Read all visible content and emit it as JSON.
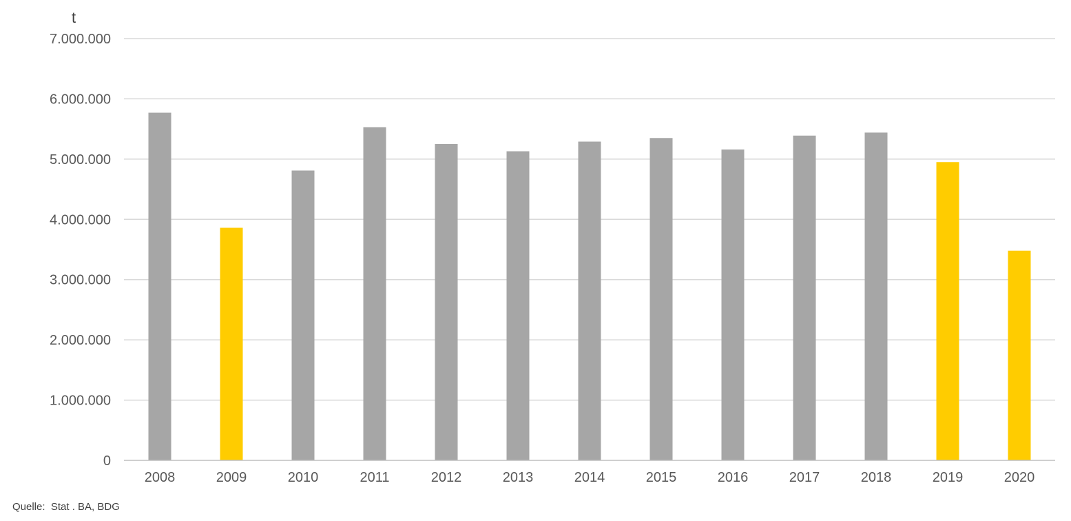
{
  "chart_data": {
    "type": "bar",
    "ylabel": "t",
    "categories": [
      "2008",
      "2009",
      "2010",
      "2011",
      "2012",
      "2013",
      "2014",
      "2015",
      "2016",
      "2017",
      "2018",
      "2019",
      "2020"
    ],
    "values": [
      5770000,
      3860000,
      4810000,
      5530000,
      5250000,
      5130000,
      5290000,
      5350000,
      5160000,
      5390000,
      5440000,
      4950000,
      3480000
    ],
    "highlighted": [
      "2009",
      "2019",
      "2020"
    ],
    "ylim": [
      0,
      7000000
    ],
    "yticks": [
      0,
      1000000,
      2000000,
      3000000,
      4000000,
      5000000,
      6000000,
      7000000
    ],
    "ytick_labels": [
      "0",
      "1.000.000",
      "2.000.000",
      "3.000.000",
      "4.000.000",
      "5.000.000",
      "6.000.000",
      "7.000.000"
    ],
    "grid": true,
    "colors": {
      "bar": "#a6a6a6",
      "highlight": "#ffcc00",
      "grid": "#d9d9d9",
      "axis": "#bfbfbf"
    }
  },
  "source": "Quelle:  Stat . BA, BDG"
}
